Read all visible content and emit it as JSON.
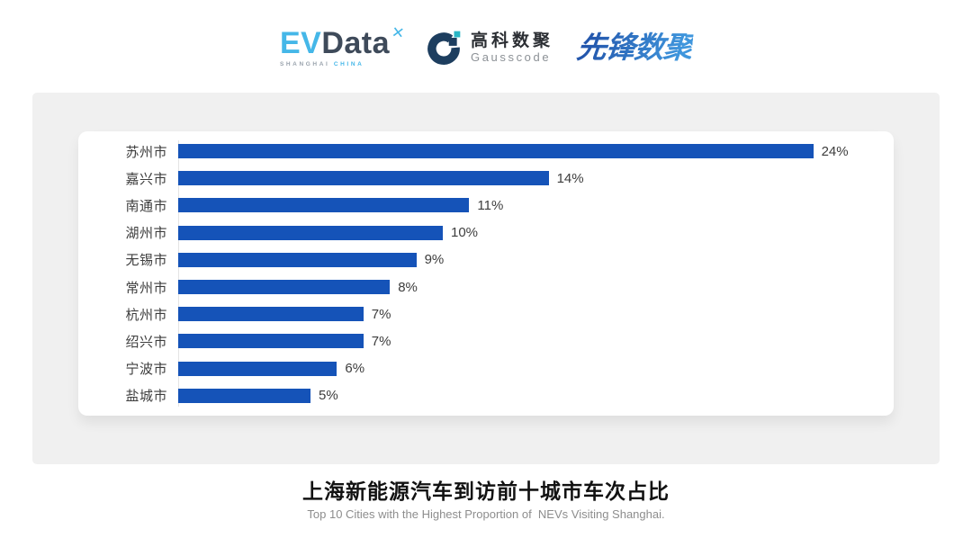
{
  "header": {
    "logos": {
      "evdata": {
        "part_ev": "EV",
        "part_data": "Data",
        "mark": "✕",
        "sub_left": "SHANGHAI",
        "sub_right": "CHINA"
      },
      "gausscode": {
        "cn": "高科数聚",
        "en": "Gausscode"
      },
      "xianfeng": {
        "text": "先锋数聚"
      }
    }
  },
  "chart_data": {
    "type": "bar",
    "orientation": "horizontal",
    "title": "上海新能源汽车到访前十城市车次占比",
    "subtitle": "Top 10 Cities with the Highest Proportion of  NEVs Visiting Shanghai.",
    "categories": [
      "苏州市",
      "嘉兴市",
      "南通市",
      "湖州市",
      "无锡市",
      "常州市",
      "杭州市",
      "绍兴市",
      "宁波市",
      "盐城市"
    ],
    "values": [
      24,
      14,
      11,
      10,
      9,
      8,
      7,
      7,
      6,
      5
    ],
    "value_labels": [
      "24%",
      "14%",
      "11%",
      "10%",
      "9%",
      "8%",
      "7%",
      "7%",
      "6%",
      "5%"
    ],
    "unit": "%",
    "xlim": [
      0,
      27
    ],
    "grid": false,
    "legend": false,
    "bar_color": "#1553B8",
    "label_color": "#3d3d3d",
    "axis_line_color": "#e4e4e4"
  },
  "footer": {
    "title": "上海新能源汽车到访前十城市车次占比",
    "subtitle": "Top 10 Cities with the Highest Proportion of  NEVs Visiting Shanghai."
  },
  "colors": {
    "panel_bg": "#f0f0f0",
    "card_bg": "#ffffff",
    "page_bg": "#ffffff",
    "evdata_blue": "#45b7e8",
    "evdata_dark": "#3e4a5a",
    "gausscode_navy": "#1d3e5f",
    "gausscode_teal": "#29b6c5",
    "xianfeng_gradient_start": "#2356ac",
    "xianfeng_gradient_end": "#3f96dd"
  }
}
